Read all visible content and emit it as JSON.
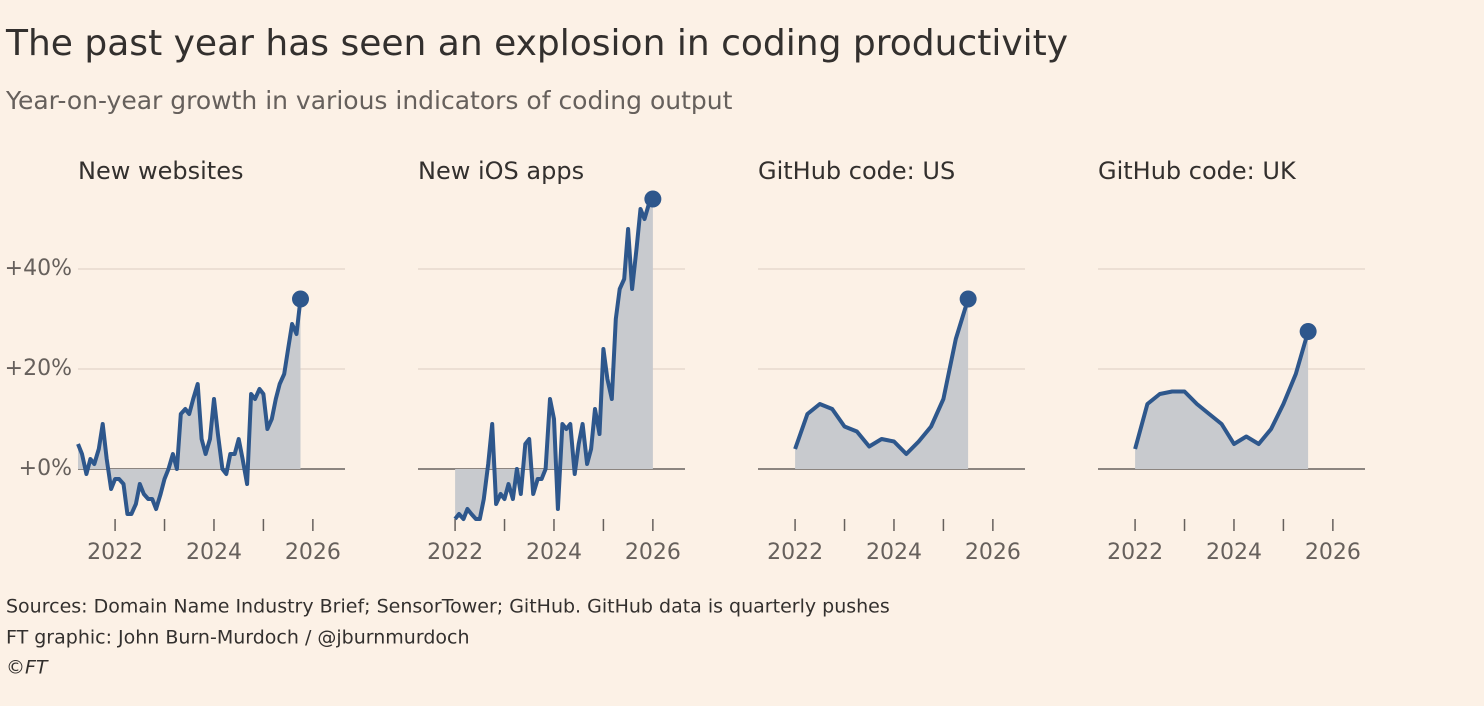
{
  "title": "The past year has seen an explosion in coding productivity",
  "subtitle": "Year-on-year growth in various indicators of coding output",
  "footer": [
    "Sources: Domain Name Industry Brief; SensorTower; GitHub. GitHub data is quarterly pushes",
    "FT graphic: John Burn-Murdoch / @jburnmurdoch",
    "©FT"
  ],
  "chart_data": [
    {
      "type": "line",
      "title": "New websites",
      "color": "#2e578c",
      "area_color": "#c8cace",
      "area": true,
      "end_marker": true,
      "grid": true,
      "x": [
        2021.25,
        2021.33,
        2021.42,
        2021.5,
        2021.58,
        2021.67,
        2021.75,
        2021.83,
        2021.92,
        2022.0,
        2022.08,
        2022.17,
        2022.25,
        2022.33,
        2022.42,
        2022.5,
        2022.58,
        2022.67,
        2022.75,
        2022.83,
        2022.92,
        2023.0,
        2023.08,
        2023.17,
        2023.25,
        2023.33,
        2023.42,
        2023.5,
        2023.58,
        2023.67,
        2023.75,
        2023.83,
        2023.92,
        2024.0,
        2024.08,
        2024.17,
        2024.25,
        2024.33,
        2024.42,
        2024.5,
        2024.58,
        2024.67,
        2024.75,
        2024.83,
        2024.92,
        2025.0,
        2025.08,
        2025.17,
        2025.25,
        2025.33,
        2025.42,
        2025.5,
        2025.58,
        2025.67,
        2025.75
      ],
      "values": [
        5,
        3,
        -1,
        2,
        1,
        4,
        9,
        2,
        -4,
        -2,
        -2,
        -3,
        -9,
        -9,
        -7,
        -3,
        -5,
        -6,
        -6,
        -8,
        -5,
        -2,
        0,
        3,
        0,
        11,
        12,
        11,
        14,
        17,
        6,
        3,
        6,
        14,
        7,
        0,
        -1,
        3,
        3,
        6,
        2,
        -3,
        15,
        14,
        16,
        15,
        8,
        10,
        14,
        17,
        19,
        24,
        29,
        27,
        34
      ],
      "xlim": [
        2021.25,
        2026.65
      ],
      "xticks": [
        2022,
        2024,
        2026
      ],
      "minor_xticks": [
        2023,
        2025
      ],
      "ylim": [
        -11,
        57
      ],
      "yticks": [
        {
          "value": 0,
          "label": "+0%"
        },
        {
          "value": 20,
          "label": "+20%"
        },
        {
          "value": 40,
          "label": "+40%"
        }
      ]
    },
    {
      "type": "line",
      "title": "New iOS apps",
      "color": "#2e578c",
      "area_color": "#c8cace",
      "area": true,
      "end_marker": true,
      "grid": true,
      "x": [
        2022.0,
        2022.08,
        2022.17,
        2022.25,
        2022.33,
        2022.42,
        2022.5,
        2022.58,
        2022.67,
        2022.75,
        2022.83,
        2022.92,
        2023.0,
        2023.08,
        2023.17,
        2023.25,
        2023.33,
        2023.42,
        2023.5,
        2023.58,
        2023.67,
        2023.75,
        2023.83,
        2023.92,
        2024.0,
        2024.08,
        2024.17,
        2024.25,
        2024.33,
        2024.42,
        2024.5,
        2024.58,
        2024.67,
        2024.75,
        2024.83,
        2024.92,
        2025.0,
        2025.08,
        2025.17,
        2025.25,
        2025.33,
        2025.42,
        2025.5,
        2025.58,
        2025.67,
        2025.75,
        2025.83,
        2025.92,
        2026.0
      ],
      "values": [
        -10,
        -9,
        -10,
        -8,
        -9,
        -10,
        -10,
        -6,
        1,
        9,
        -7,
        -5,
        -6,
        -3,
        -6,
        0,
        -5,
        5,
        6,
        -5,
        -2,
        -2,
        0,
        14,
        10,
        -8,
        9,
        8,
        9,
        -1,
        5,
        9,
        1,
        4,
        12,
        7,
        24,
        18,
        14,
        30,
        36,
        38,
        48,
        36,
        44,
        52,
        50,
        53,
        54
      ],
      "xlim": [
        2021.25,
        2026.65
      ],
      "xticks": [
        2022,
        2024,
        2026
      ],
      "minor_xticks": [
        2023,
        2025
      ],
      "ylim": [
        -11,
        57
      ],
      "yticks": [
        0,
        20,
        40
      ]
    },
    {
      "type": "line",
      "title": "GitHub code: US",
      "color": "#2e578c",
      "area_color": "#c8cace",
      "area": true,
      "end_marker": true,
      "grid": true,
      "x": [
        2022.0,
        2022.25,
        2022.5,
        2022.75,
        2023.0,
        2023.25,
        2023.5,
        2023.75,
        2024.0,
        2024.25,
        2024.5,
        2024.75,
        2025.0,
        2025.25,
        2025.5
      ],
      "values": [
        4,
        11,
        13,
        12,
        8.5,
        7.5,
        4.5,
        6,
        5.5,
        3,
        5.5,
        8.5,
        14,
        26,
        34
      ],
      "xlim": [
        2021.25,
        2026.65
      ],
      "xticks": [
        2022,
        2024,
        2026
      ],
      "minor_xticks": [
        2023,
        2025
      ],
      "ylim": [
        -11,
        57
      ],
      "yticks": [
        0,
        20,
        40
      ]
    },
    {
      "type": "line",
      "title": "GitHub code: UK",
      "color": "#2e578c",
      "area_color": "#c8cace",
      "area": true,
      "end_marker": true,
      "grid": true,
      "x": [
        2022.0,
        2022.25,
        2022.5,
        2022.75,
        2023.0,
        2023.25,
        2023.5,
        2023.75,
        2024.0,
        2024.25,
        2024.5,
        2024.75,
        2025.0,
        2025.25,
        2025.5
      ],
      "values": [
        4,
        13,
        15,
        15.5,
        15.5,
        13,
        11,
        9,
        5,
        6.5,
        5,
        8,
        13,
        19,
        27.5
      ],
      "xlim": [
        2021.25,
        2026.65
      ],
      "xticks": [
        2022,
        2024,
        2026
      ],
      "minor_xticks": [
        2023,
        2025
      ],
      "ylim": [
        -11,
        57
      ],
      "yticks": [
        0,
        20,
        40
      ]
    }
  ]
}
